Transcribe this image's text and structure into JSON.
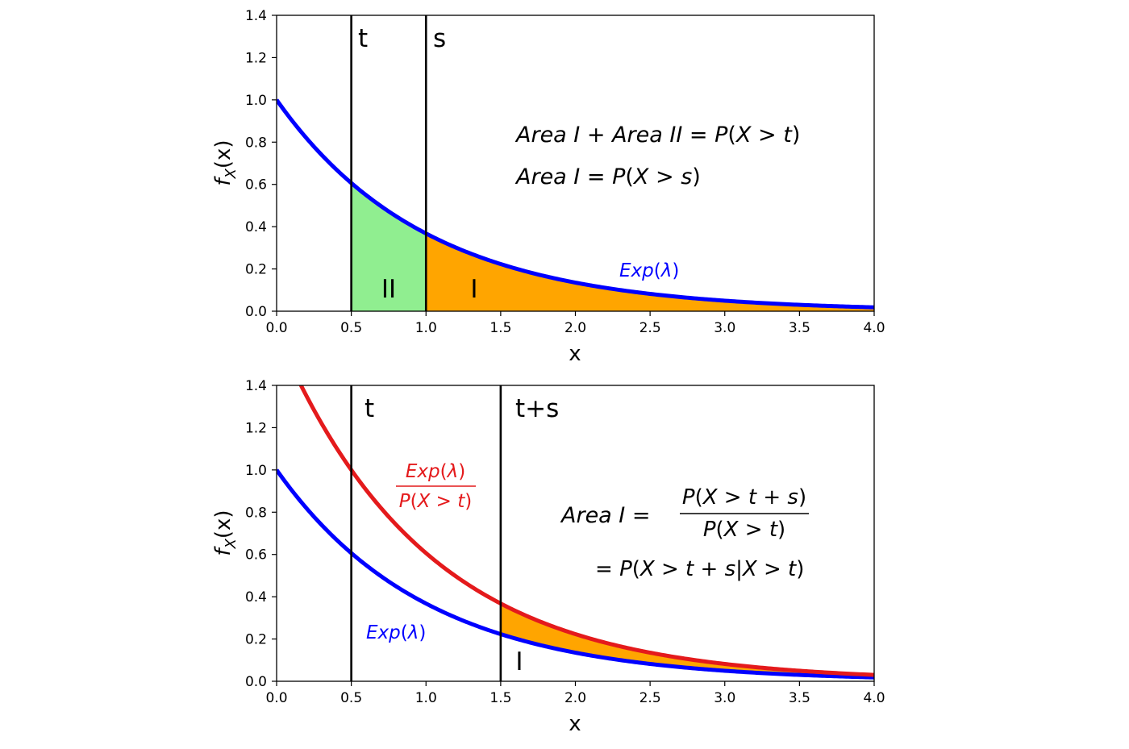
{
  "chart_data": [
    {
      "type": "area",
      "xlabel": "x",
      "ylabel": "f",
      "ylabel_sub": "X",
      "ylabel_arg": "(x)",
      "xlim": [
        0.0,
        4.0
      ],
      "ylim": [
        0.0,
        1.4
      ],
      "xticks": [
        "0.0",
        "0.5",
        "1.0",
        "1.5",
        "2.0",
        "2.5",
        "3.0",
        "3.5",
        "4.0"
      ],
      "yticks": [
        "0.0",
        "0.2",
        "0.4",
        "0.6",
        "0.8",
        "1.0",
        "1.2",
        "1.4"
      ],
      "grid": false,
      "series": [
        {
          "name": "Exp(λ)",
          "color": "#0000ff",
          "lambda": 1.0,
          "scale": 1.0,
          "x": [
            0,
            0.5,
            1.0,
            1.5,
            2.0,
            2.5,
            3.0,
            3.5,
            4.0
          ],
          "y": [
            1.0,
            0.607,
            0.368,
            0.223,
            0.135,
            0.082,
            0.05,
            0.03,
            0.018
          ]
        }
      ],
      "shaded_regions": [
        {
          "label": "II",
          "from": 0.5,
          "to": 1.0,
          "color": "#90ee90"
        },
        {
          "label": "I",
          "from": 1.0,
          "to": 4.0,
          "color": "#ffa500"
        }
      ],
      "vlines": [
        {
          "x": 0.5,
          "label": "t"
        },
        {
          "x": 1.0,
          "label": "s"
        }
      ],
      "annotations": [
        {
          "id": "eq1",
          "parts": [
            "Area I",
            " + ",
            "Area II",
            " = ",
            "P",
            "(",
            "X",
            " > ",
            "t",
            ")"
          ]
        },
        {
          "id": "eq2",
          "parts": [
            "Area I",
            " = ",
            "P",
            "(",
            "X",
            " > ",
            "s",
            ")"
          ]
        }
      ],
      "curve_label": {
        "func": "Exp",
        "open": "(",
        "param": "λ",
        "close": ")"
      }
    },
    {
      "type": "area",
      "xlabel": "x",
      "ylabel": "f",
      "ylabel_sub": "X",
      "ylabel_arg": "(x)",
      "xlim": [
        0.0,
        4.0
      ],
      "ylim": [
        0.0,
        1.4
      ],
      "xticks": [
        "0.0",
        "0.5",
        "1.0",
        "1.5",
        "2.0",
        "2.5",
        "3.0",
        "3.5",
        "4.0"
      ],
      "yticks": [
        "0.0",
        "0.2",
        "0.4",
        "0.6",
        "0.8",
        "1.0",
        "1.2",
        "1.4"
      ],
      "grid": false,
      "series": [
        {
          "name": "Exp(λ)",
          "color": "#0000ff",
          "lambda": 1.0,
          "scale": 1.0,
          "x": [
            0,
            0.5,
            1.0,
            1.5,
            2.0,
            2.5,
            3.0,
            3.5,
            4.0
          ],
          "y": [
            1.0,
            0.607,
            0.368,
            0.223,
            0.135,
            0.082,
            0.05,
            0.03,
            0.018
          ]
        },
        {
          "name": "Exp(λ) / P(X > t)",
          "color": "#e41a1c",
          "lambda": 1.0,
          "scale": 1.6487,
          "x": [
            0.16,
            0.5,
            1.0,
            1.5,
            2.0,
            2.5,
            3.0,
            3.5,
            4.0
          ],
          "y": [
            1.4,
            1.0,
            0.607,
            0.368,
            0.223,
            0.135,
            0.082,
            0.05,
            0.03
          ]
        }
      ],
      "shaded_regions": [
        {
          "label": "I",
          "from": 1.5,
          "to": 4.0,
          "color": "#ffa500"
        }
      ],
      "vlines": [
        {
          "x": 0.5,
          "label": "t"
        },
        {
          "x": 1.5,
          "label": "t+s"
        }
      ],
      "annotations": [
        {
          "id": "lhs",
          "text": "Area I",
          "eq": " = "
        },
        {
          "id": "num",
          "parts": [
            "P",
            "(",
            "X",
            " > ",
            "t",
            " + ",
            "s",
            ")"
          ]
        },
        {
          "id": "den",
          "parts": [
            "P",
            "(",
            "X",
            " > ",
            "t",
            ")"
          ]
        },
        {
          "id": "eq3",
          "parts": [
            "= ",
            "P",
            "(",
            "X",
            " > ",
            "t",
            " + ",
            "s",
            "|",
            "X",
            " > ",
            "t",
            ")"
          ]
        }
      ],
      "curve_label_blue": {
        "func": "Exp",
        "open": "(",
        "param": "λ",
        "close": ")"
      },
      "curve_label_red": {
        "num": {
          "func": "Exp",
          "open": "(",
          "param": "λ",
          "close": ")"
        },
        "den": {
          "parts": [
            "P",
            "(",
            "X",
            " > ",
            "t",
            ")"
          ]
        }
      }
    }
  ]
}
